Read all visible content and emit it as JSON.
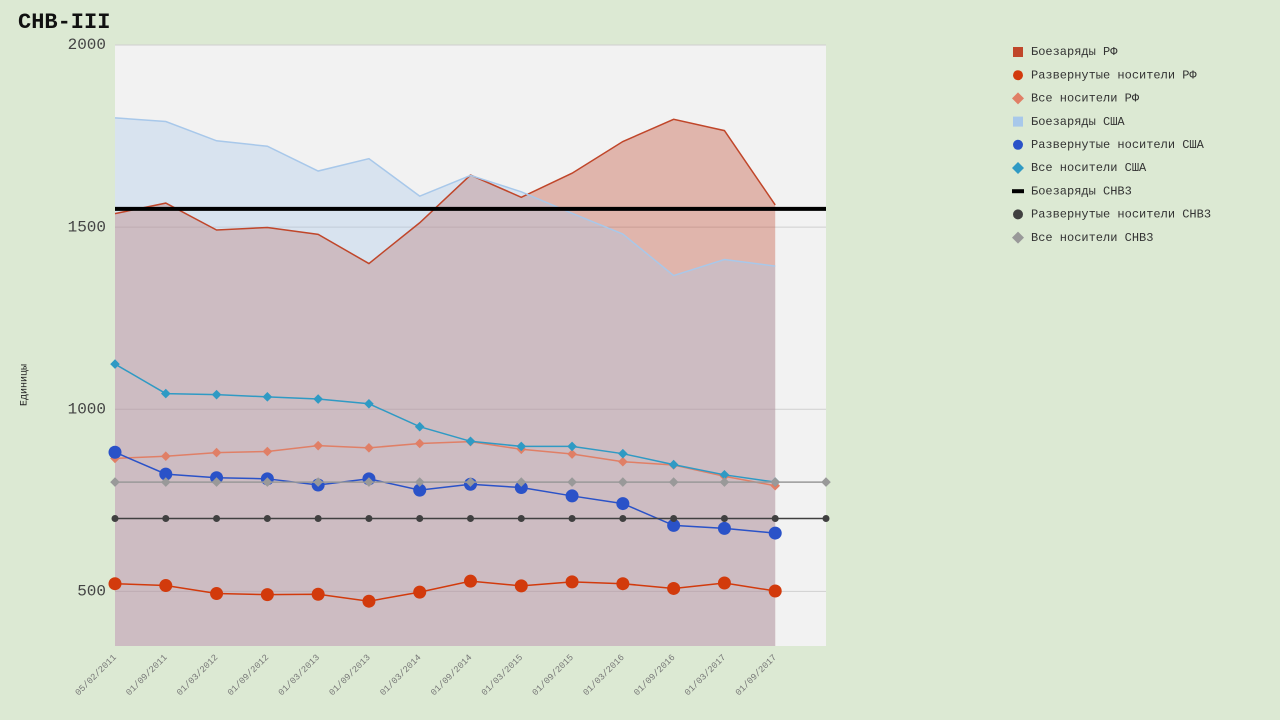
{
  "chart_data": {
    "type": "line",
    "title": "СНВ-III",
    "y_label": "Единицы",
    "categories": [
      "05/02/2011",
      "01/09/2011",
      "01/03/2012",
      "01/09/2012",
      "01/03/2013",
      "01/09/2013",
      "01/03/2014",
      "01/09/2014",
      "01/03/2015",
      "01/09/2015",
      "01/03/2016",
      "01/09/2016",
      "01/03/2017",
      "01/09/2017",
      null
    ],
    "ylim": [
      350,
      2000
    ],
    "yticks": [
      500,
      1000,
      1500,
      2000
    ],
    "grid": true,
    "series": [
      {
        "name": "Боезаряды РФ",
        "color": "#c0462a",
        "marker": "square",
        "area": true,
        "values": [
          1537,
          1566,
          1492,
          1499,
          1480,
          1400,
          1512,
          1643,
          1582,
          1648,
          1735,
          1796,
          1765,
          1561,
          null
        ]
      },
      {
        "name": "Развернутые носители РФ",
        "color": "#d23a0c",
        "marker": "circle",
        "values": [
          521,
          516,
          494,
          491,
          492,
          473,
          498,
          528,
          515,
          526,
          521,
          508,
          523,
          501,
          null
        ]
      },
      {
        "name": "Все носители РФ",
        "color": "#e07f66",
        "marker": "diamond",
        "values": [
          865,
          871,
          881,
          884,
          900,
          894,
          906,
          911,
          890,
          877,
          856,
          847,
          816,
          790,
          null
        ]
      },
      {
        "name": "Боезаряды США",
        "color": "#a8c8ea",
        "marker": "square",
        "area": true,
        "values": [
          1800,
          1790,
          1737,
          1722,
          1654,
          1688,
          1585,
          1642,
          1597,
          1538,
          1481,
          1367,
          1411,
          1393,
          null
        ]
      },
      {
        "name": "Развернутые носители США",
        "color": "#2a52c8",
        "marker": "circle",
        "values": [
          882,
          822,
          812,
          809,
          792,
          809,
          778,
          794,
          785,
          762,
          741,
          681,
          673,
          660,
          null
        ]
      },
      {
        "name": "Все носители США",
        "color": "#2f9ac4",
        "marker": "diamond",
        "values": [
          1124,
          1043,
          1040,
          1034,
          1028,
          1015,
          952,
          912,
          898,
          898,
          878,
          848,
          820,
          800,
          null
        ]
      },
      {
        "name": "Боезаряды СНВ3",
        "color": "#000000",
        "marker": "line",
        "values": [
          1550,
          1550,
          1550,
          1550,
          1550,
          1550,
          1550,
          1550,
          1550,
          1550,
          1550,
          1550,
          1550,
          1550,
          1550
        ]
      },
      {
        "name": "Развернутые носители СНВ3",
        "color": "#404040",
        "marker": "circle",
        "values": [
          700,
          700,
          700,
          700,
          700,
          700,
          700,
          700,
          700,
          700,
          700,
          700,
          700,
          700,
          700
        ]
      },
      {
        "name": "Все носители СНВ3",
        "color": "#999999",
        "marker": "diamond",
        "values": [
          800,
          800,
          800,
          800,
          800,
          800,
          800,
          800,
          800,
          800,
          800,
          800,
          800,
          800,
          800
        ]
      }
    ]
  }
}
